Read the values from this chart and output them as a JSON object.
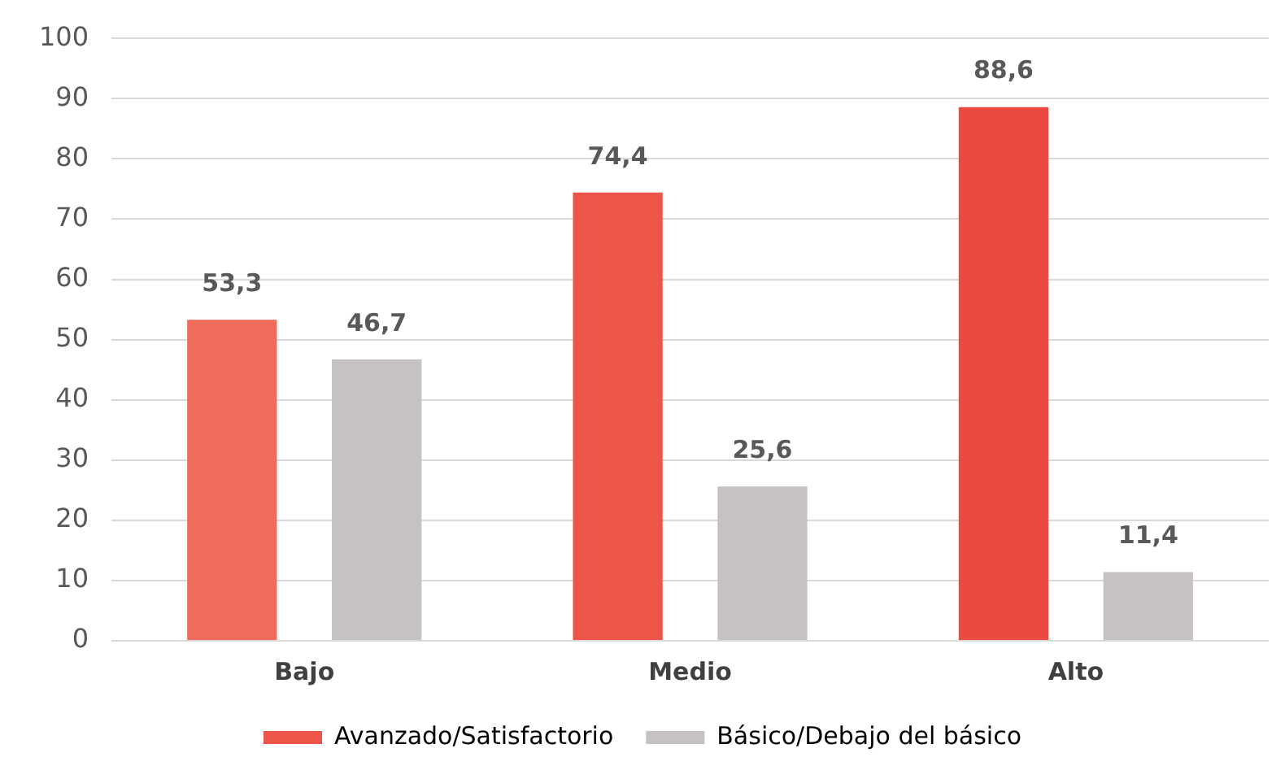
{
  "chart_data": {
    "type": "bar",
    "categories": [
      "Bajo",
      "Medio",
      "Alto"
    ],
    "series": [
      {
        "name": "Avanzado/Satisfactorio",
        "color": "#ec5548",
        "colors": [
          "#ef6c5c",
          "#ec5548",
          "#eb4a40"
        ],
        "values": [
          53.3,
          74.4,
          88.6
        ],
        "value_labels": [
          "53,3",
          "74,4",
          "88,6"
        ]
      },
      {
        "name": "Básico/Debajo del básico",
        "color": "#c5c1c5",
        "colors": [
          "#c5c1c5",
          "#c5c1c5",
          "#c5c1c5"
        ],
        "values": [
          46.7,
          25.6,
          11.4
        ],
        "value_labels": [
          "46,7",
          "25,6",
          "11,4"
        ]
      }
    ],
    "ylim": [
      0,
      100
    ],
    "yticks": [
      0,
      10,
      20,
      30,
      40,
      50,
      60,
      70,
      80,
      90,
      100
    ],
    "grid": "y",
    "legend": "bottom"
  }
}
